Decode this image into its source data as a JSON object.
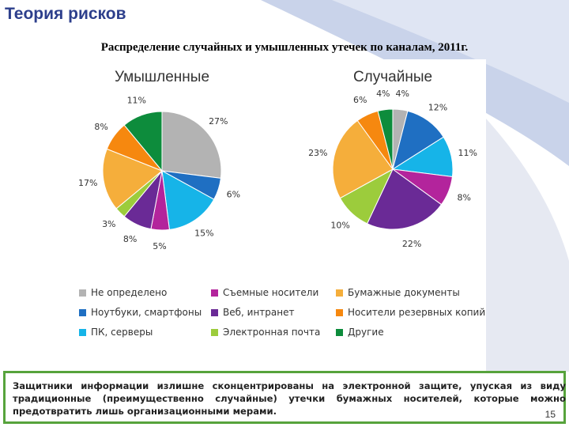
{
  "slide": {
    "title": "Теория рисков",
    "subtitle": "Распределение случайных и умышленных утечек по каналам, 2011г.",
    "note": "Защитники информации излишне сконцентрированы на электронной защите, упуская из виду традиционные (преимущественно случайные) утечки бумажных носителей, которые можно предотвратить лишь организационными мерами.",
    "page_number": "15"
  },
  "colors": {
    "title": "#2d3f8c",
    "note_border": "#57a33c",
    "wave": "#c9d3ea"
  },
  "chart_data": [
    {
      "type": "pie",
      "title": "Умышленные",
      "slices": [
        {
          "label": "Не определено",
          "value": 27,
          "text": "27%",
          "color": "#b3b3b3"
        },
        {
          "label": "Ноутбуки, смартфоны",
          "value": 6,
          "text": "6%",
          "color": "#1f6fc2"
        },
        {
          "label": "ПК, серверы",
          "value": 15,
          "text": "15%",
          "color": "#16b4e8"
        },
        {
          "label": "Съемные носители",
          "value": 5,
          "text": "5%",
          "color": "#b3249c"
        },
        {
          "label": "Веб, интранет",
          "value": 8,
          "text": "8%",
          "color": "#6a2a96"
        },
        {
          "label": "Электронная почта",
          "value": 3,
          "text": "3%",
          "color": "#9ccc3c"
        },
        {
          "label": "Бумажные документы",
          "value": 17,
          "text": "17%",
          "color": "#f5ae3b"
        },
        {
          "label": "Носители резервных копий",
          "value": 8,
          "text": "8%",
          "color": "#f6880f"
        },
        {
          "label": "Другие",
          "value": 11,
          "text": "11%",
          "color": "#0d8c3c"
        }
      ]
    },
    {
      "type": "pie",
      "title": "Случайные",
      "slices": [
        {
          "label": "Не определено",
          "value": 4,
          "text": "4%",
          "color": "#b3b3b3"
        },
        {
          "label": "Ноутбуки, смартфоны",
          "value": 12,
          "text": "12%",
          "color": "#1f6fc2"
        },
        {
          "label": "ПК, серверы",
          "value": 11,
          "text": "11%",
          "color": "#16b4e8"
        },
        {
          "label": "Съемные носители",
          "value": 8,
          "text": "8%",
          "color": "#b3249c"
        },
        {
          "label": "Веб, интранет",
          "value": 22,
          "text": "22%",
          "color": "#6a2a96"
        },
        {
          "label": "Электронная почта",
          "value": 10,
          "text": "10%",
          "color": "#9ccc3c"
        },
        {
          "label": "Бумажные документы",
          "value": 23,
          "text": "23%",
          "color": "#f5ae3b"
        },
        {
          "label": "Носители резервных копий",
          "value": 6,
          "text": "6%",
          "color": "#f6880f"
        },
        {
          "label": "Другие",
          "value": 4,
          "text": "4%",
          "color": "#0d8c3c"
        }
      ]
    }
  ],
  "legend": [
    {
      "label": "Не определено",
      "color": "#b3b3b3"
    },
    {
      "label": "Ноутбуки, смартфоны",
      "color": "#1f6fc2"
    },
    {
      "label": "ПК, серверы",
      "color": "#16b4e8"
    },
    {
      "label": "Съемные носители",
      "color": "#b3249c"
    },
    {
      "label": "Веб, интранет",
      "color": "#6a2a96"
    },
    {
      "label": "Электронная почта",
      "color": "#9ccc3c"
    },
    {
      "label": "Бумажные документы",
      "color": "#f5ae3b"
    },
    {
      "label": "Носители резервных копий",
      "color": "#f6880f"
    },
    {
      "label": "Другие",
      "color": "#0d8c3c"
    }
  ]
}
